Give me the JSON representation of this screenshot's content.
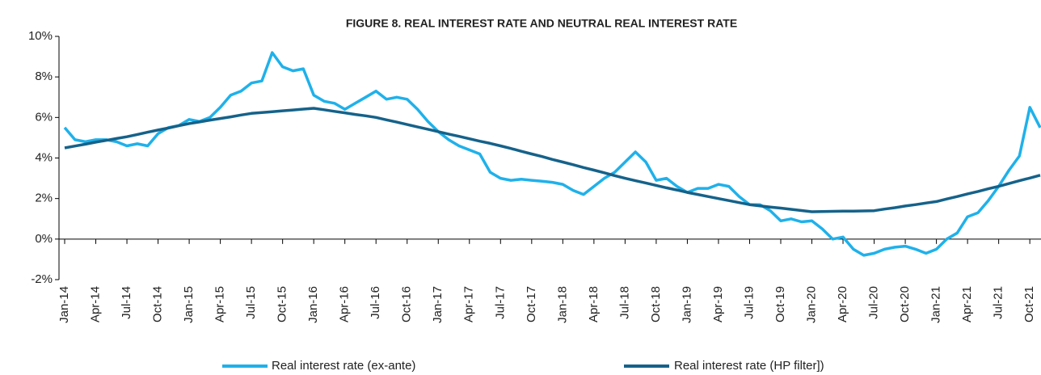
{
  "chart_data": {
    "type": "line",
    "title": "FIGURE 8. REAL INTEREST  RATE AND NEUTRAL REAL INTEREST RATE",
    "categories": [
      "Jan-14",
      null,
      null,
      "Apr-14",
      null,
      null,
      "Jul-14",
      null,
      null,
      "Oct-14",
      null,
      null,
      "Jan-15",
      null,
      null,
      "Apr-15",
      null,
      null,
      "Jul-15",
      null,
      null,
      "Oct-15",
      null,
      null,
      "Jan-16",
      null,
      null,
      "Apr-16",
      null,
      null,
      "Jul-16",
      null,
      null,
      "Oct-16",
      null,
      null,
      "Jan-17",
      null,
      null,
      "Apr-17",
      null,
      null,
      "Jul-17",
      null,
      null,
      "Oct-17",
      null,
      null,
      "Jan-18",
      null,
      null,
      "Apr-18",
      null,
      null,
      "Jul-18",
      null,
      null,
      "Oct-18",
      null,
      null,
      "Jan-19",
      null,
      null,
      "Apr-19",
      null,
      null,
      "Jul-19",
      null,
      null,
      "Oct-19",
      null,
      null,
      "Jan-20",
      null,
      null,
      "Apr-20",
      null,
      null,
      "Jul-20",
      null,
      null,
      "Oct-20",
      null,
      null,
      "Jan-21",
      null,
      null,
      "Apr-21",
      null,
      null,
      "Jul-21",
      null,
      null,
      "Oct-21",
      null
    ],
    "series": [
      {
        "name": "Real interest rate (ex-ante)",
        "color": "#1fb1ea",
        "values": [
          5.5,
          4.9,
          4.8,
          4.9,
          4.9,
          4.8,
          4.6,
          4.7,
          4.6,
          5.2,
          5.5,
          5.6,
          5.9,
          5.8,
          6.0,
          6.5,
          7.1,
          7.3,
          7.7,
          7.8,
          9.2,
          8.5,
          8.3,
          8.4,
          7.1,
          6.8,
          6.7,
          6.4,
          6.7,
          7.0,
          7.3,
          6.9,
          7.0,
          6.9,
          6.4,
          5.8,
          5.3,
          4.9,
          4.6,
          4.4,
          4.2,
          3.3,
          3.0,
          2.9,
          2.95,
          2.9,
          2.85,
          2.8,
          2.7,
          2.4,
          2.2,
          2.6,
          3.0,
          3.3,
          3.8,
          4.3,
          3.8,
          2.9,
          3.0,
          2.6,
          2.3,
          2.5,
          2.5,
          2.7,
          2.6,
          2.1,
          1.7,
          1.7,
          1.4,
          0.9,
          1.0,
          0.85,
          0.9,
          0.5,
          0.0,
          0.1,
          -0.5,
          -0.8,
          -0.7,
          -0.5,
          -0.4,
          -0.35,
          -0.5,
          -0.7,
          -0.5,
          0.0,
          0.3,
          1.1,
          1.3,
          1.9,
          2.6,
          3.4,
          4.1,
          6.5,
          5.5
        ]
      },
      {
        "name": "Real interest rate (HP filter])",
        "color": "#15628a",
        "values": [
          4.5,
          4.59,
          4.68,
          4.78,
          4.87,
          4.96,
          5.05,
          5.16,
          5.27,
          5.38,
          5.48,
          5.59,
          5.7,
          5.78,
          5.87,
          5.95,
          6.03,
          6.12,
          6.2,
          6.24,
          6.28,
          6.33,
          6.37,
          6.41,
          6.45,
          6.38,
          6.3,
          6.23,
          6.15,
          6.08,
          6.0,
          5.88,
          5.77,
          5.65,
          5.53,
          5.42,
          5.3,
          5.18,
          5.07,
          4.95,
          4.83,
          4.72,
          4.6,
          4.47,
          4.33,
          4.2,
          4.07,
          3.93,
          3.8,
          3.67,
          3.53,
          3.4,
          3.27,
          3.13,
          3.0,
          2.88,
          2.77,
          2.65,
          2.53,
          2.42,
          2.3,
          2.2,
          2.1,
          2.0,
          1.9,
          1.8,
          1.7,
          1.64,
          1.58,
          1.53,
          1.47,
          1.41,
          1.35,
          1.36,
          1.37,
          1.38,
          1.38,
          1.39,
          1.4,
          1.48,
          1.55,
          1.63,
          1.7,
          1.78,
          1.85,
          1.98,
          2.1,
          2.23,
          2.35,
          2.48,
          2.6,
          2.74,
          2.88,
          3.01,
          3.15
        ]
      }
    ],
    "ylim": [
      -2,
      10
    ],
    "yticks": [
      {
        "value": -2,
        "label": "-2%"
      },
      {
        "value": 0,
        "label": "0%"
      },
      {
        "value": 2,
        "label": "2%"
      },
      {
        "value": 4,
        "label": "4%"
      },
      {
        "value": 6,
        "label": "6%"
      },
      {
        "value": 8,
        "label": "8%"
      },
      {
        "value": 10,
        "label": "10%"
      }
    ],
    "grid": false
  }
}
